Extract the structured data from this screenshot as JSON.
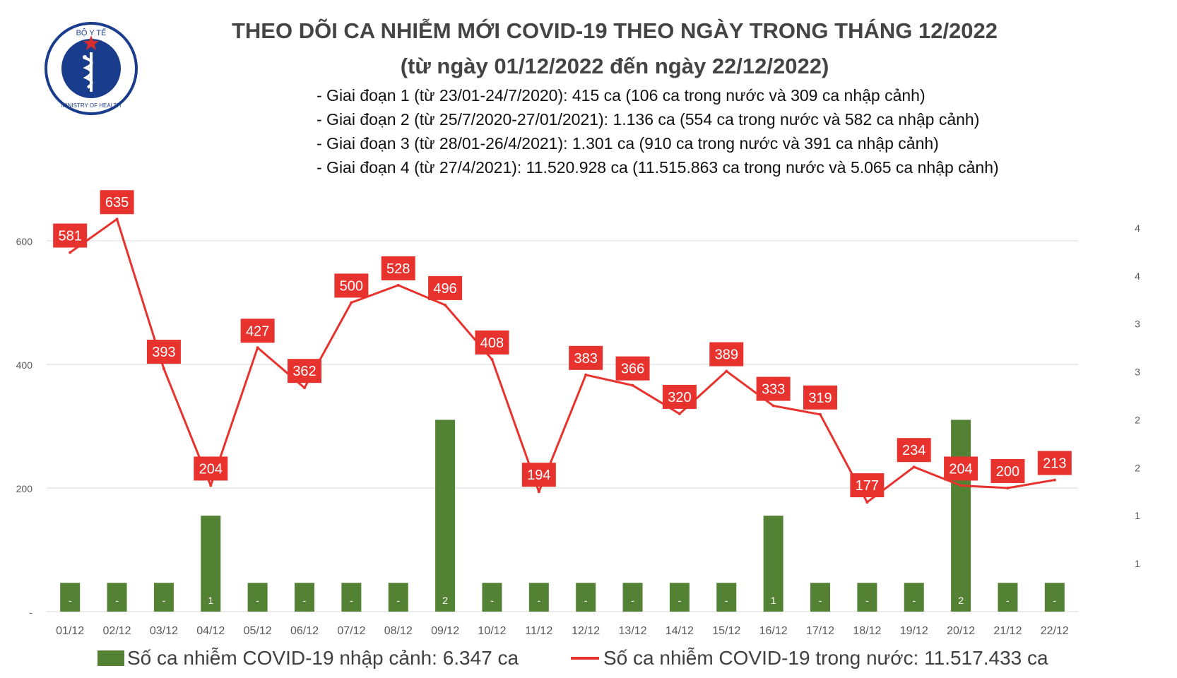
{
  "logo": {
    "top_text": "BỘ Y TẾ",
    "bottom_text": "MINISTRY OF HEALTH",
    "colors": {
      "ring": "#1a3c8c",
      "star": "#f0c419",
      "flag": "#d32f2f"
    }
  },
  "header": {
    "title_line1": "THEO DÕI CA NHIỄM MỚI COVID-19 THEO NGÀY TRONG THÁNG 12/2022",
    "title_line2": "(từ ngày 01/12/2022 đến ngày 22/12/2022)",
    "notes": [
      "- Giai đoạn 1 (từ 23/01-24/7/2020): 415 ca (106 ca trong nước và 309 ca nhập cảnh)",
      "- Giai đoạn 2 (từ 25/7/2020-27/01/2021): 1.136 ca (554 ca trong nước và 582 ca nhập cảnh)",
      "- Giai đoạn 3 (từ 28/01-26/4/2021): 1.301 ca (910 ca trong nước và 391 ca nhập cảnh)",
      "- Giai đoạn 4 (từ 27/4/2021): 11.520.928 ca (11.515.863 ca trong nước và 5.065 ca nhập cảnh)"
    ]
  },
  "chart_data": {
    "type": "bar+line",
    "categories": [
      "01/12",
      "02/12",
      "03/12",
      "04/12",
      "05/12",
      "06/12",
      "07/12",
      "08/12",
      "09/12",
      "10/12",
      "11/12",
      "12/12",
      "13/12",
      "14/12",
      "15/12",
      "16/12",
      "17/12",
      "18/12",
      "19/12",
      "20/12",
      "21/12",
      "22/12"
    ],
    "series": [
      {
        "name": "Số ca nhiễm COVID-19 nhập cảnh: 6.347 ca",
        "type": "bar",
        "axis": "right",
        "color": "#548235",
        "values": [
          0,
          0,
          0,
          1,
          0,
          0,
          0,
          0,
          2,
          0,
          0,
          0,
          0,
          0,
          0,
          1,
          0,
          0,
          0,
          2,
          0,
          0
        ],
        "labels": [
          "-",
          "-",
          "-",
          "1",
          "-",
          "-",
          "-",
          "-",
          "2",
          "-",
          "-",
          "-",
          "-",
          "-",
          "-",
          "1",
          "-",
          "-",
          "-",
          "2",
          "-",
          "-"
        ]
      },
      {
        "name": "Số ca nhiễm COVID-19 trong nước: 11.517.433 ca",
        "type": "line",
        "axis": "left",
        "color": "#e8322d",
        "values": [
          581,
          635,
          393,
          204,
          427,
          362,
          500,
          528,
          496,
          408,
          194,
          383,
          366,
          320,
          389,
          333,
          319,
          177,
          234,
          204,
          200,
          213
        ]
      }
    ],
    "y_left": {
      "ticks": [
        "-",
        "200",
        "400",
        "600"
      ],
      "tick_values": [
        0,
        200,
        400,
        600
      ],
      "max": 600
    },
    "y_right": {
      "ticks": [
        "1",
        "1",
        "2",
        "2",
        "3",
        "3",
        "4",
        "4"
      ],
      "max": 4.5
    },
    "stub_value": 0.3,
    "grid": true,
    "legend_position": "bottom"
  }
}
